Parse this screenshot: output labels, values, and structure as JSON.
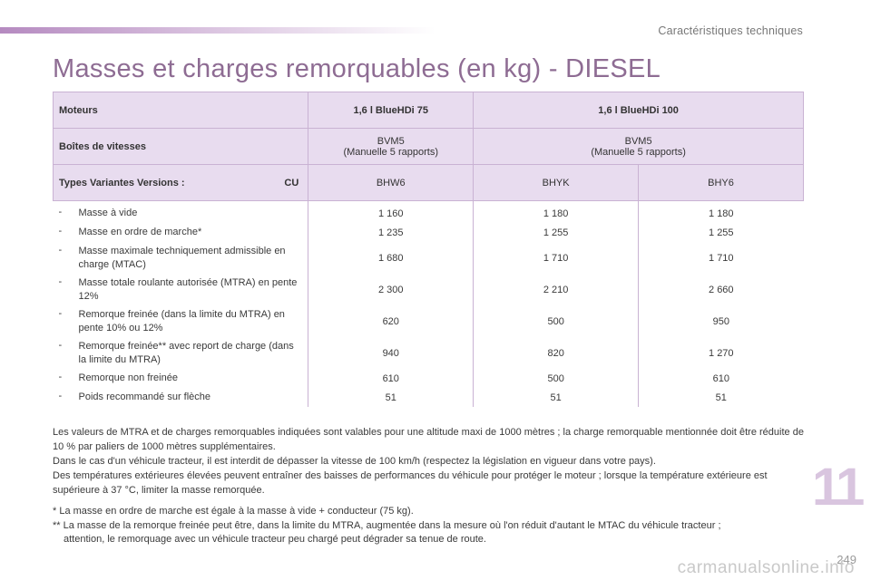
{
  "header": {
    "section": "Caractéristiques techniques",
    "title": "Masses et charges remorquables (en kg) - DIESEL"
  },
  "table": {
    "moteurs_label": "Moteurs",
    "engines": [
      "1,6 l BlueHDi 75",
      "1,6 l BlueHDi 100"
    ],
    "boites_label": "Boîtes de vitesses",
    "boites": [
      {
        "code": "BVM5",
        "desc": "(Manuelle 5 rapports)"
      },
      {
        "code": "BVM5",
        "desc": "(Manuelle 5 rapports)"
      }
    ],
    "types_label": "Types Variantes Versions :",
    "types_suffix": "CU",
    "types": [
      "BHW6",
      "BHYK",
      "BHY6"
    ],
    "rows": [
      {
        "dash": "-",
        "label": "Masse à vide",
        "values": [
          "1 160",
          "1 180",
          "1 180"
        ]
      },
      {
        "dash": "-",
        "label": "Masse en ordre de marche*",
        "values": [
          "1 235",
          "1 255",
          "1 255"
        ]
      },
      {
        "dash": "-",
        "label": "Masse maximale techniquement admissible en charge (MTAC)",
        "values": [
          "1 680",
          "1 710",
          "1 710"
        ]
      },
      {
        "dash": "-",
        "label": "Masse totale roulante autorisée (MTRA) en pente 12%",
        "values": [
          "2 300",
          "2 210",
          "2 660"
        ]
      },
      {
        "dash": "-",
        "label": "Remorque freinée (dans la limite du MTRA) en pente 10% ou 12%",
        "values": [
          "620",
          "500",
          "950"
        ]
      },
      {
        "dash": "-",
        "label": "Remorque freinée** avec report de charge (dans la limite du MTRA)",
        "values": [
          "940",
          "820",
          "1 270"
        ]
      },
      {
        "dash": "-",
        "label": "Remorque non freinée",
        "values": [
          "610",
          "500",
          "610"
        ]
      },
      {
        "dash": "-",
        "label": "Poids recommandé sur flèche",
        "values": [
          "51",
          "51",
          "51"
        ]
      }
    ]
  },
  "notes": {
    "p1": "Les valeurs de MTRA et de charges remorquables indiquées sont valables pour une altitude maxi de 1000 mètres ; la charge remorquable mentionnée doit être réduite de 10 % par paliers de 1000 mètres supplémentaires.",
    "p2": "Dans le cas d'un véhicule tracteur, il est interdit de dépasser la vitesse de 100 km/h (respectez la législation en vigueur dans votre pays).",
    "p3": "Des températures extérieures élevées peuvent entraîner des baisses de performances du véhicule pour protéger le moteur ; lorsque la température extérieure est supérieure à 37 °C, limiter la masse remorquée."
  },
  "footnotes": {
    "f1": "* La masse en ordre de marche est égale à la masse à vide + conducteur (75 kg).",
    "f2": "** La masse de la remorque freinée peut être, dans la limite du MTRA, augmentée dans la mesure où l'on réduit d'autant le MTAC du véhicule tracteur ;",
    "f2b": "attention, le remorquage avec un véhicule tracteur peu chargé peut dégrader sa tenue de route."
  },
  "chapter": "11",
  "page_number": "249",
  "watermark": "carmanualsonline.info"
}
